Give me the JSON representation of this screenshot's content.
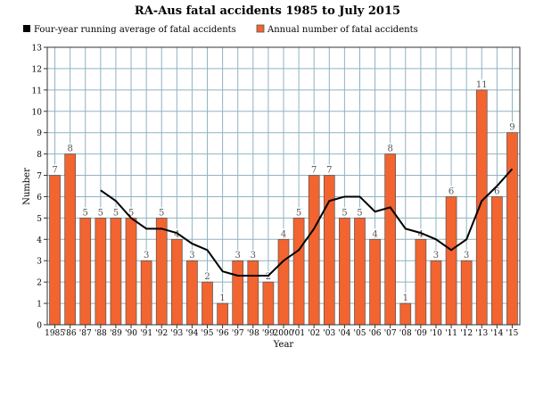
{
  "chart_data": {
    "type": "bar",
    "title": "RA-Aus fatal accidents 1985 to July  2015",
    "xlabel": "Year",
    "ylabel": "Number",
    "ylim": [
      0,
      13
    ],
    "yticks": [
      0,
      1,
      2,
      3,
      4,
      5,
      6,
      7,
      8,
      9,
      10,
      11,
      12,
      13
    ],
    "grid": true,
    "legend_placement": "top",
    "categories": [
      "1985",
      "'86",
      "'87",
      "'88",
      "'89",
      "'90",
      "'91",
      "'92",
      "'93",
      "'94",
      "'95",
      "'96",
      "'97",
      "'98",
      "'99",
      "2000",
      "'01",
      "'02",
      "'03",
      "'04",
      "'05",
      "'06",
      "'07",
      "'08",
      "'09",
      "'10",
      "'11",
      "'12",
      "'13",
      "'14",
      "'15"
    ],
    "series": [
      {
        "name": "Annual number of fatal accidents",
        "type": "bar",
        "color": "#f26430",
        "values": [
          7,
          8,
          5,
          5,
          5,
          5,
          3,
          5,
          4,
          3,
          2,
          1,
          3,
          3,
          2,
          4,
          5,
          7,
          7,
          5,
          5,
          4,
          8,
          1,
          4,
          3,
          6,
          3,
          11,
          6,
          9
        ]
      },
      {
        "name": "Four-year running average of fatal accidents",
        "type": "line",
        "color": "#000000",
        "values": [
          null,
          null,
          null,
          6.3,
          5.8,
          5.0,
          4.5,
          4.5,
          4.3,
          3.8,
          3.5,
          2.5,
          2.3,
          2.3,
          2.3,
          3.0,
          3.5,
          4.5,
          5.8,
          6.0,
          6.0,
          5.3,
          5.5,
          4.5,
          4.3,
          4.0,
          3.5,
          4.0,
          5.8,
          6.5,
          7.3
        ]
      }
    ]
  },
  "colors": {
    "grid": "#8fb3c0",
    "bar": "#f26430",
    "bar_edge": "#555555",
    "line": "#000000"
  }
}
